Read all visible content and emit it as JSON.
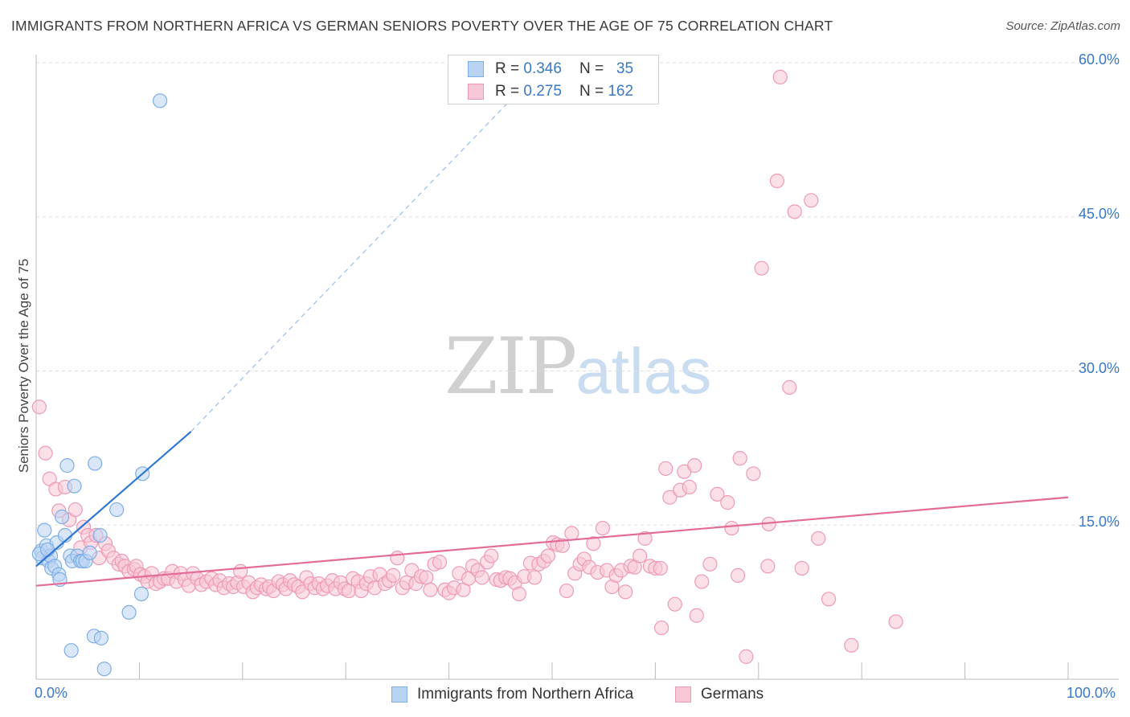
{
  "header": {
    "title": "IMMIGRANTS FROM NORTHERN AFRICA VS GERMAN SENIORS POVERTY OVER THE AGE OF 75 CORRELATION CHART",
    "source": "Source: ZipAtlas.com"
  },
  "watermark": {
    "zip": "ZIP",
    "atlas": "atlas"
  },
  "legend": {
    "rows": [
      {
        "r_label": "R = ",
        "r_value": "0.346",
        "n_label": "N = ",
        "n_value": "35"
      },
      {
        "r_label": "R = ",
        "r_value": "0.275",
        "n_label": "N = ",
        "n_value": "162"
      }
    ]
  },
  "colors": {
    "blue_fill": "#b9d3f3",
    "blue_stroke": "#7eaee6",
    "blue_line": "#2f78d6",
    "pink_fill": "#f8c7d6",
    "pink_stroke": "#ee9ab5",
    "pink_line": "#e26b97",
    "tick_text": "#3a78c9",
    "grid": "#dddddd"
  },
  "chart_data": {
    "type": "scatter",
    "title": "IMMIGRANTS FROM NORTHERN AFRICA VS GERMAN SENIORS POVERTY OVER THE AGE OF 75 CORRELATION CHART",
    "xlabel": "",
    "ylabel": "Seniors Poverty Over the Age of 75",
    "xlim": [
      0,
      100
    ],
    "ylim": [
      0,
      60
    ],
    "x_tick_labels": [
      "0.0%",
      "100.0%"
    ],
    "y_ticks": [
      15,
      30,
      45,
      60
    ],
    "y_tick_labels": [
      "15.0%",
      "30.0%",
      "45.0%",
      "60.0%"
    ],
    "grid": "horizontal dashed",
    "legend_placement": "bottom",
    "series": [
      {
        "name": "Immigrants from Northern Africa",
        "color": "#b9d3f3",
        "r": 0.346,
        "n": 35,
        "trend": {
          "x": [
            0,
            15
          ],
          "y": [
            11.0,
            24.1
          ],
          "extended_to": [
            46,
            56.4
          ]
        },
        "points": [
          [
            0.5,
            12.5
          ],
          [
            0.6,
            11.8
          ],
          [
            0.8,
            14.5
          ],
          [
            1.0,
            13.0
          ],
          [
            1.2,
            11.5
          ],
          [
            1.4,
            12.0
          ],
          [
            1.5,
            10.8
          ],
          [
            1.8,
            11.0
          ],
          [
            2.0,
            13.3
          ],
          [
            2.2,
            10.2
          ],
          [
            2.3,
            9.7
          ],
          [
            2.5,
            15.8
          ],
          [
            2.8,
            14.0
          ],
          [
            3.0,
            20.8
          ],
          [
            3.3,
            12.0
          ],
          [
            3.5,
            11.5
          ],
          [
            3.7,
            18.8
          ],
          [
            4.0,
            12.0
          ],
          [
            4.3,
            11.5
          ],
          [
            4.5,
            11.5
          ],
          [
            4.8,
            11.5
          ],
          [
            5.2,
            12.3
          ],
          [
            5.7,
            21.0
          ],
          [
            6.2,
            14.0
          ],
          [
            7.8,
            16.5
          ],
          [
            9.0,
            6.5
          ],
          [
            10.2,
            8.3
          ],
          [
            10.3,
            20.0
          ],
          [
            3.4,
            2.8
          ],
          [
            5.6,
            4.2
          ],
          [
            6.3,
            4.0
          ],
          [
            6.6,
            1.0
          ],
          [
            12.0,
            56.3
          ],
          [
            0.3,
            12.2
          ],
          [
            1.1,
            12.6
          ]
        ]
      },
      {
        "name": "Germans",
        "color": "#f8c7d6",
        "r": 0.275,
        "n": 162,
        "trend": {
          "x": [
            0,
            100
          ],
          "y": [
            9.1,
            17.7
          ]
        },
        "points": [
          [
            0.3,
            26.5
          ],
          [
            0.9,
            22.0
          ],
          [
            1.3,
            19.5
          ],
          [
            1.9,
            18.5
          ],
          [
            2.2,
            16.4
          ],
          [
            2.8,
            18.7
          ],
          [
            3.2,
            15.5
          ],
          [
            3.8,
            16.5
          ],
          [
            4.3,
            12.8
          ],
          [
            4.6,
            14.8
          ],
          [
            5.0,
            14.0
          ],
          [
            5.3,
            13.3
          ],
          [
            5.8,
            14.0
          ],
          [
            6.1,
            11.8
          ],
          [
            6.7,
            13.2
          ],
          [
            7.0,
            12.5
          ],
          [
            7.5,
            11.8
          ],
          [
            8.0,
            11.2
          ],
          [
            8.3,
            11.5
          ],
          [
            8.6,
            11.0
          ],
          [
            9.0,
            10.5
          ],
          [
            9.5,
            10.7
          ],
          [
            9.7,
            11.0
          ],
          [
            10.1,
            10.2
          ],
          [
            10.5,
            10.0
          ],
          [
            10.8,
            9.5
          ],
          [
            11.2,
            10.3
          ],
          [
            11.6,
            9.3
          ],
          [
            12.0,
            9.5
          ],
          [
            12.4,
            9.8
          ],
          [
            12.8,
            9.8
          ],
          [
            13.2,
            10.5
          ],
          [
            13.6,
            9.5
          ],
          [
            14.0,
            10.3
          ],
          [
            14.4,
            9.7
          ],
          [
            14.8,
            9.1
          ],
          [
            15.2,
            10.3
          ],
          [
            15.6,
            9.8
          ],
          [
            16.0,
            9.2
          ],
          [
            16.5,
            9.5
          ],
          [
            17.0,
            9.8
          ],
          [
            17.4,
            9.2
          ],
          [
            17.8,
            9.6
          ],
          [
            18.2,
            8.9
          ],
          [
            18.7,
            9.3
          ],
          [
            19.1,
            9.0
          ],
          [
            19.5,
            9.4
          ],
          [
            19.8,
            10.5
          ],
          [
            20.1,
            9.0
          ],
          [
            20.6,
            9.4
          ],
          [
            21.0,
            8.5
          ],
          [
            21.4,
            8.9
          ],
          [
            21.8,
            9.2
          ],
          [
            22.3,
            8.8
          ],
          [
            22.6,
            9.0
          ],
          [
            23.0,
            8.6
          ],
          [
            23.5,
            9.5
          ],
          [
            23.9,
            9.2
          ],
          [
            24.2,
            8.8
          ],
          [
            24.6,
            9.6
          ],
          [
            25.0,
            9.2
          ],
          [
            25.4,
            9.0
          ],
          [
            25.8,
            8.5
          ],
          [
            26.2,
            9.9
          ],
          [
            26.6,
            9.3
          ],
          [
            27.0,
            8.9
          ],
          [
            27.4,
            9.3
          ],
          [
            27.8,
            8.8
          ],
          [
            28.2,
            9.1
          ],
          [
            28.7,
            9.6
          ],
          [
            29.0,
            8.8
          ],
          [
            29.5,
            9.4
          ],
          [
            29.9,
            8.8
          ],
          [
            30.3,
            8.6
          ],
          [
            30.7,
            9.8
          ],
          [
            31.2,
            9.5
          ],
          [
            31.5,
            8.6
          ],
          [
            32.0,
            9.3
          ],
          [
            32.4,
            10.0
          ],
          [
            32.8,
            8.9
          ],
          [
            33.3,
            10.2
          ],
          [
            33.8,
            9.3
          ],
          [
            34.2,
            9.6
          ],
          [
            34.6,
            10.1
          ],
          [
            35.0,
            11.8
          ],
          [
            35.5,
            8.9
          ],
          [
            35.9,
            9.4
          ],
          [
            36.4,
            10.6
          ],
          [
            36.8,
            9.3
          ],
          [
            37.3,
            10.0
          ],
          [
            37.8,
            9.9
          ],
          [
            38.2,
            8.7
          ],
          [
            38.6,
            11.2
          ],
          [
            39.1,
            11.4
          ],
          [
            39.6,
            8.7
          ],
          [
            40.0,
            8.4
          ],
          [
            40.5,
            8.9
          ],
          [
            41.0,
            10.3
          ],
          [
            41.4,
            8.7
          ],
          [
            41.9,
            9.8
          ],
          [
            42.3,
            11.0
          ],
          [
            42.8,
            10.6
          ],
          [
            43.2,
            9.9
          ],
          [
            43.7,
            11.4
          ],
          [
            44.1,
            12.0
          ],
          [
            44.6,
            9.7
          ],
          [
            45.0,
            9.6
          ],
          [
            45.5,
            9.9
          ],
          [
            45.9,
            9.8
          ],
          [
            46.4,
            9.4
          ],
          [
            46.8,
            8.3
          ],
          [
            47.3,
            10.0
          ],
          [
            47.9,
            11.3
          ],
          [
            48.3,
            9.9
          ],
          [
            48.7,
            11.2
          ],
          [
            49.2,
            11.5
          ],
          [
            49.6,
            12.0
          ],
          [
            50.1,
            13.3
          ],
          [
            50.5,
            13.1
          ],
          [
            51.0,
            13.0
          ],
          [
            51.4,
            8.6
          ],
          [
            51.9,
            14.2
          ],
          [
            52.2,
            10.3
          ],
          [
            52.7,
            11.2
          ],
          [
            53.1,
            11.7
          ],
          [
            53.6,
            10.9
          ],
          [
            54.0,
            13.2
          ],
          [
            54.4,
            10.4
          ],
          [
            54.9,
            14.7
          ],
          [
            55.3,
            10.6
          ],
          [
            55.8,
            9.0
          ],
          [
            56.2,
            10.1
          ],
          [
            56.7,
            10.6
          ],
          [
            57.1,
            8.5
          ],
          [
            57.6,
            11.0
          ],
          [
            58.0,
            10.9
          ],
          [
            58.5,
            12.0
          ],
          [
            59.0,
            13.7
          ],
          [
            59.5,
            11.0
          ],
          [
            60.0,
            10.8
          ],
          [
            60.5,
            10.8
          ],
          [
            61.0,
            20.5
          ],
          [
            61.4,
            17.7
          ],
          [
            61.9,
            7.3
          ],
          [
            62.4,
            18.4
          ],
          [
            62.8,
            20.2
          ],
          [
            63.3,
            18.7
          ],
          [
            63.8,
            20.8
          ],
          [
            64.5,
            9.5
          ],
          [
            65.3,
            11.2
          ],
          [
            66.0,
            18.0
          ],
          [
            67.0,
            17.2
          ],
          [
            67.4,
            14.7
          ],
          [
            68.2,
            21.5
          ],
          [
            68.8,
            2.2
          ],
          [
            69.5,
            20.0
          ],
          [
            70.3,
            40.0
          ],
          [
            71.0,
            15.1
          ],
          [
            71.8,
            48.5
          ],
          [
            72.1,
            58.6
          ],
          [
            73.0,
            28.4
          ],
          [
            73.5,
            45.5
          ],
          [
            74.2,
            10.8
          ],
          [
            75.1,
            46.6
          ],
          [
            75.8,
            13.7
          ],
          [
            76.8,
            7.8
          ],
          [
            79.0,
            3.3
          ],
          [
            83.3,
            5.6
          ],
          [
            64.0,
            6.2
          ],
          [
            60.6,
            5.0
          ],
          [
            68.0,
            10.1
          ],
          [
            70.9,
            11.0
          ]
        ]
      }
    ]
  },
  "bottom_legend": {
    "items": [
      {
        "label": "Immigrants from Northern Africa"
      },
      {
        "label": "Germans"
      }
    ]
  }
}
